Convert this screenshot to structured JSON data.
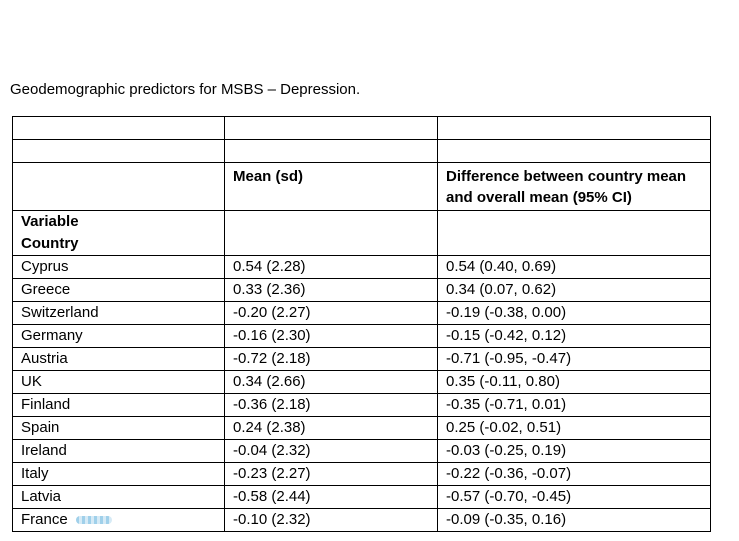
{
  "caption": "Geodemographic predictors for MSBS – Depression.",
  "headers": {
    "col1": "",
    "col2": "Mean (sd)",
    "col3": "Difference between country mean and overall mean (95% CI)"
  },
  "section_labels": {
    "variable": "Variable",
    "country": "Country"
  },
  "rows": [
    {
      "country": "Cyprus",
      "mean_sd": "0.54 (2.28)",
      "diff_ci": "0.54 (0.40, 0.69)"
    },
    {
      "country": "Greece",
      "mean_sd": "0.33 (2.36)",
      "diff_ci": "0.34 (0.07, 0.62)"
    },
    {
      "country": "Switzerland",
      "mean_sd": "-0.20 (2.27)",
      "diff_ci": "-0.19 (-0.38, 0.00)"
    },
    {
      "country": "Germany",
      "mean_sd": "-0.16 (2.30)",
      "diff_ci": "-0.15 (-0.42, 0.12)"
    },
    {
      "country": "Austria",
      "mean_sd": "-0.72 (2.18)",
      "diff_ci": "-0.71 (-0.95, -0.47)"
    },
    {
      "country": "UK",
      "mean_sd": "0.34 (2.66)",
      "diff_ci": "0.35 (-0.11, 0.80)"
    },
    {
      "country": "Finland",
      "mean_sd": "-0.36 (2.18)",
      "diff_ci": "-0.35 (-0.71, 0.01)"
    },
    {
      "country": "Spain",
      "mean_sd": "0.24 (2.38)",
      "diff_ci": "0.25 (-0.02, 0.51)"
    },
    {
      "country": "Ireland",
      "mean_sd": "-0.04 (2.32)",
      "diff_ci": "-0.03 (-0.25, 0.19)"
    },
    {
      "country": "Italy",
      "mean_sd": "-0.23 (2.27)",
      "diff_ci": "-0.22 (-0.36, -0.07)"
    },
    {
      "country": "Latvia",
      "mean_sd": "-0.58 (2.44)",
      "diff_ci": "-0.57 (-0.70, -0.45)"
    },
    {
      "country": "France",
      "mean_sd": "-0.10 (2.32)",
      "diff_ci": "-0.09 (-0.35, 0.16)"
    }
  ]
}
